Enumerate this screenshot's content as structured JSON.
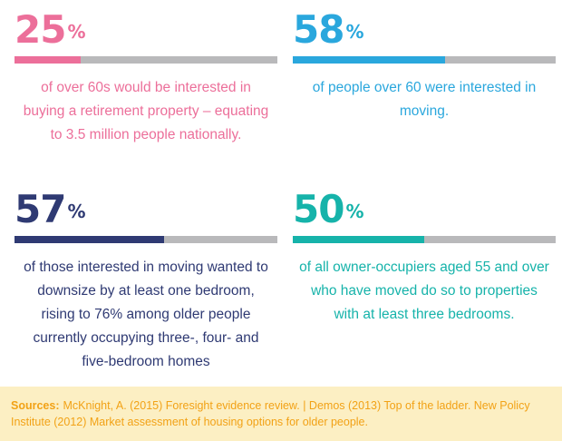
{
  "chart_data": [
    {
      "type": "bar",
      "value": 25,
      "max": 100,
      "unit": "%",
      "color": "#ec6f9a",
      "description": "of over 60s would be interested in buying a retirement property – equating to 3.5 million people nationally."
    },
    {
      "type": "bar",
      "value": 58,
      "max": 100,
      "unit": "%",
      "color": "#2aa7dd",
      "description": "of people over 60 were interested in moving."
    },
    {
      "type": "bar",
      "value": 57,
      "max": 100,
      "unit": "%",
      "color": "#2f3a73",
      "description": "of those interested in moving wanted to downsize by at least one bedroom, rising to 76% among older people currently occupying three-, four- and five-bedroom homes"
    },
    {
      "type": "bar",
      "value": 50,
      "max": 100,
      "unit": "%",
      "color": "#16b3aa",
      "description": "of all owner-occupiers aged 55 and over who have moved do so to properties with at least three bedrooms."
    }
  ],
  "track_color": "#b9b9bb",
  "sources": {
    "label": "Sources:",
    "text": "McKnight, A. (2015) Foresight evidence review. | Demos (2013) Top of the ladder. New Policy Institute (2012) Market assessment of housing options for older people."
  }
}
